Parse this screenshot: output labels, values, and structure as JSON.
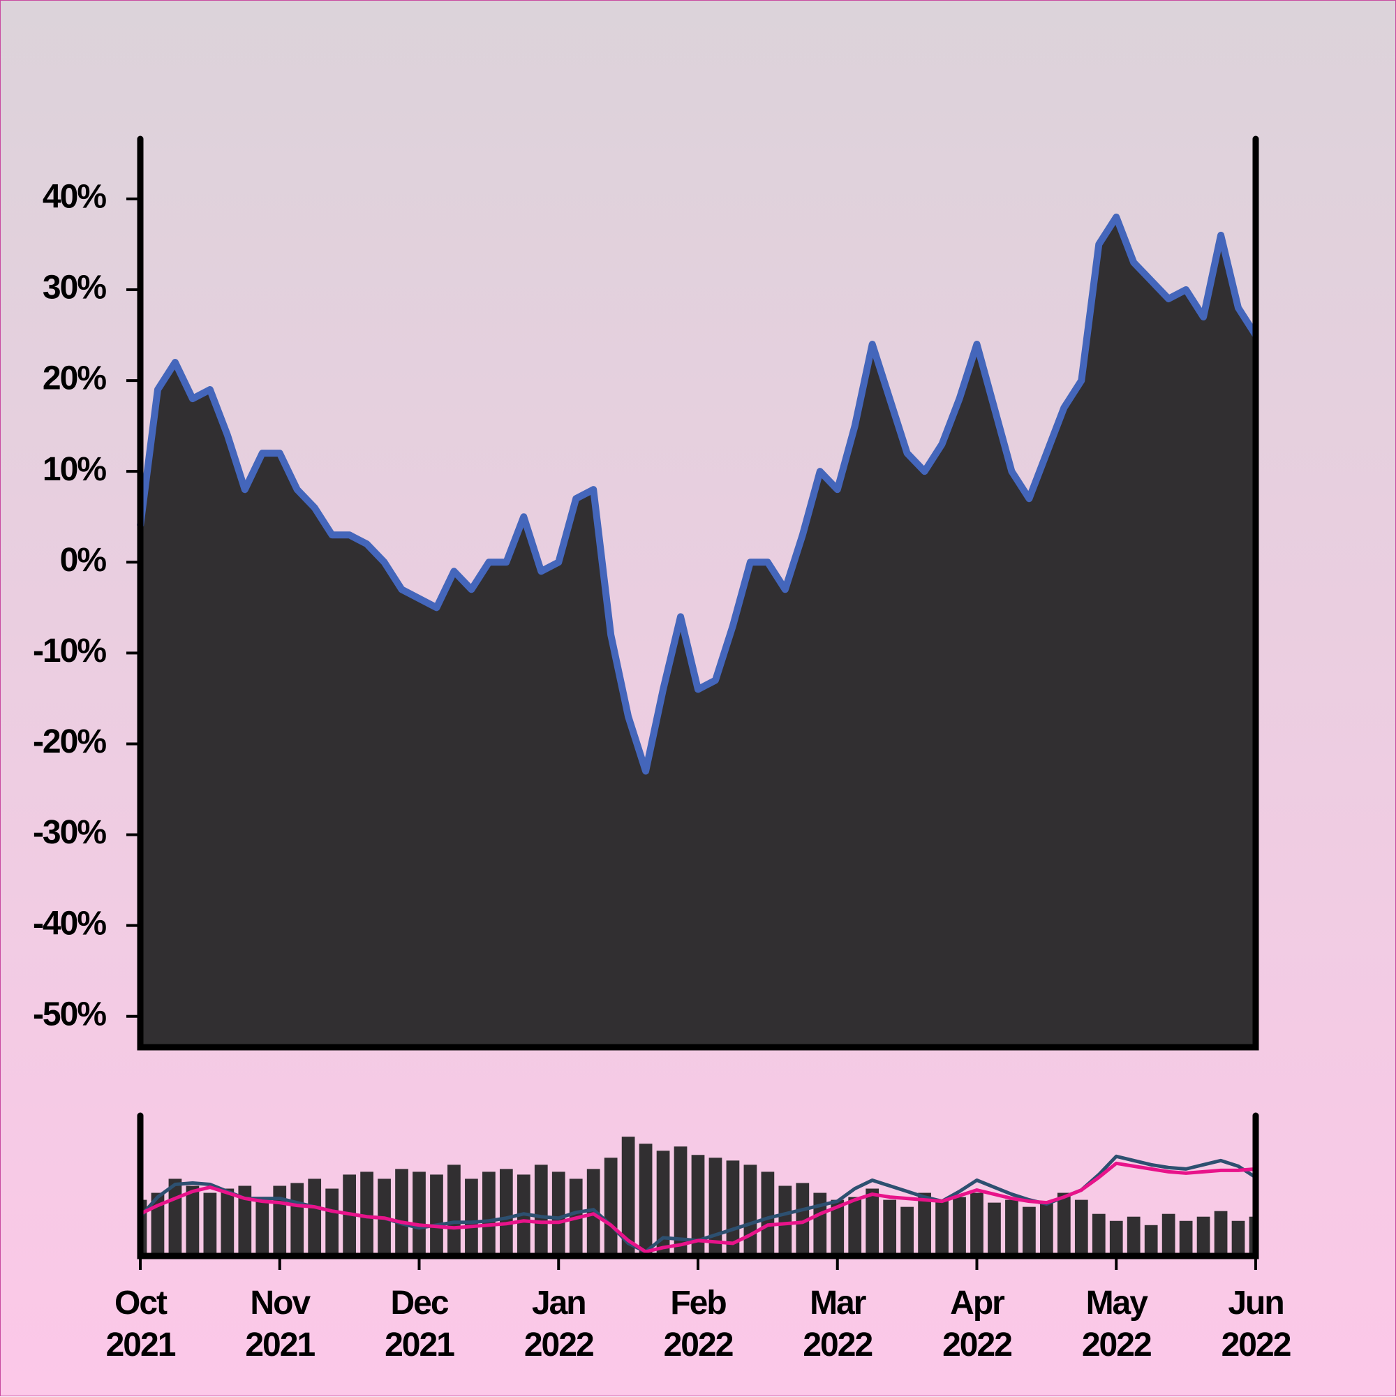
{
  "chart_data": [
    {
      "type": "area",
      "values": [
        4,
        19,
        22,
        18,
        19,
        14,
        8,
        12,
        12,
        8,
        6,
        3,
        3,
        2,
        0,
        -3,
        -4,
        -5,
        -1,
        -3,
        0,
        0,
        5,
        -1,
        0,
        7,
        8,
        -8,
        -17,
        -23,
        -14,
        -6,
        -14,
        -13,
        -7,
        0,
        0,
        -3,
        3,
        10,
        8,
        15,
        24,
        18,
        12,
        10,
        13,
        18,
        24,
        17,
        10,
        7,
        12,
        17,
        20,
        35,
        38,
        33,
        31,
        29,
        30,
        27,
        36,
        28,
        25
      ],
      "color": "#312f31",
      "line_color": "#4466bb",
      "ylim": [
        -53.4,
        46.6
      ],
      "yticks": [
        {
          "value": 40,
          "label": "40%"
        },
        {
          "value": 30,
          "label": "30%"
        },
        {
          "value": 20,
          "label": "20%"
        },
        {
          "value": 10,
          "label": "10%"
        },
        {
          "value": 0,
          "label": "0%"
        },
        {
          "value": -10,
          "label": "-10%"
        },
        {
          "value": -20,
          "label": "-20%"
        },
        {
          "value": -30,
          "label": "-30%"
        },
        {
          "value": -40,
          "label": "-40%"
        },
        {
          "value": -50,
          "label": "-50%"
        }
      ]
    },
    {
      "type": "bar",
      "categories": [
        "Oct\n2021",
        null,
        null,
        null,
        null,
        null,
        null,
        null,
        "Nov\n2021",
        null,
        null,
        null,
        null,
        null,
        null,
        null,
        "Dec\n2021",
        null,
        null,
        null,
        null,
        null,
        null,
        null,
        "Jan\n2022",
        null,
        null,
        null,
        null,
        null,
        null,
        null,
        "Feb\n2022",
        null,
        null,
        null,
        null,
        null,
        null,
        null,
        "Mar\n2022",
        null,
        null,
        null,
        null,
        null,
        null,
        null,
        "Apr\n2022",
        null,
        null,
        null,
        null,
        null,
        null,
        null,
        "May\n2022",
        null,
        null,
        null,
        null,
        null,
        null,
        null,
        "Jun\n2022"
      ],
      "values": [
        40,
        45,
        55,
        50,
        45,
        48,
        50,
        42,
        50,
        52,
        55,
        48,
        58,
        60,
        55,
        62,
        60,
        58,
        65,
        55,
        60,
        62,
        58,
        65,
        60,
        55,
        62,
        70,
        85,
        80,
        75,
        78,
        72,
        70,
        68,
        65,
        60,
        50,
        52,
        45,
        40,
        42,
        48,
        40,
        35,
        45,
        40,
        42,
        45,
        38,
        40,
        35,
        38,
        45,
        40,
        30,
        25,
        28,
        22,
        30,
        25,
        28,
        32,
        25,
        28
      ],
      "color": "#312f31",
      "ylim": [
        0,
        100
      ],
      "series": [
        {
          "color": "#2d5070",
          "values": [
            28,
            42,
            51,
            52,
            51,
            46,
            41,
            41,
            41,
            38,
            35,
            32,
            30,
            28,
            27,
            23,
            20,
            22,
            24,
            24,
            25,
            27,
            30,
            28,
            27,
            31,
            33,
            22,
            9,
            3,
            13,
            12,
            11,
            15,
            19,
            23,
            27,
            30,
            33,
            36,
            39,
            48,
            54,
            50,
            46,
            42,
            39,
            46,
            54,
            49,
            44,
            40,
            37,
            42,
            47,
            58,
            71,
            68,
            65,
            63,
            62,
            65,
            68,
            64,
            56
          ]
        },
        {
          "color": "#e8138a",
          "values": [
            30,
            36,
            41,
            46,
            49,
            45,
            41,
            39,
            38,
            36,
            35,
            32,
            30,
            28,
            27,
            24,
            22,
            21,
            20,
            21,
            22,
            23,
            25,
            24,
            24,
            27,
            30,
            22,
            11,
            3,
            6,
            8,
            11,
            10,
            9,
            15,
            22,
            23,
            24,
            30,
            35,
            40,
            44,
            42,
            41,
            40,
            39,
            43,
            47,
            44,
            41,
            39,
            38,
            42,
            47,
            56,
            66,
            64,
            62,
            60,
            59,
            60,
            61,
            61,
            62
          ]
        }
      ]
    }
  ]
}
